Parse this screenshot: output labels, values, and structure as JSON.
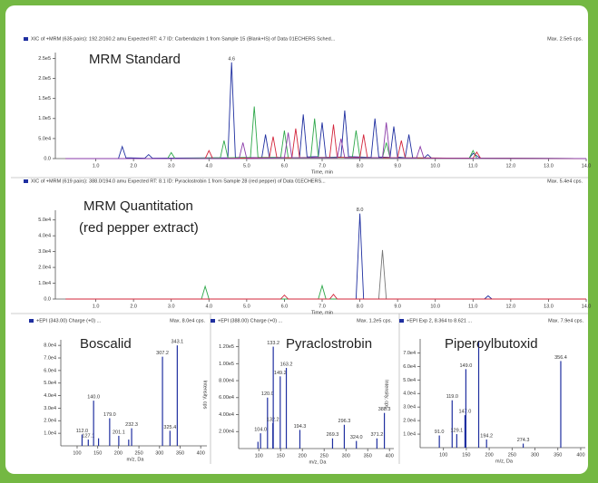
{
  "chart_data": [
    {
      "type": "line",
      "header": "XIC of +MRM (635 pairs): 192.2/160.2 amu Expected RT: 4.7 ID: Carbendazim 1 from Sample 15 (Blank+IS) of Data 01ECHERS Sched...",
      "max_label": "Max. 2.5e5 cps.",
      "title": "MRM Standard",
      "xlabel": "Time, min",
      "xlim": [
        0,
        14
      ],
      "ylim": [
        0,
        260000
      ],
      "xticks": [
        {
          "value": 1,
          "label": "1.0"
        },
        {
          "value": 2,
          "label": "2.0"
        },
        {
          "value": 3,
          "label": "3.0"
        },
        {
          "value": 4,
          "label": "4.0"
        },
        {
          "value": 5,
          "label": "5.0"
        },
        {
          "value": 6,
          "label": "6.0"
        },
        {
          "value": 7,
          "label": "7.0"
        },
        {
          "value": 8,
          "label": "8.0"
        },
        {
          "value": 9,
          "label": "9.0"
        },
        {
          "value": 10,
          "label": "10.0"
        },
        {
          "value": 11,
          "label": "11.0"
        },
        {
          "value": 12,
          "label": "12.0"
        },
        {
          "value": 13,
          "label": "13.0"
        },
        {
          "value": 14,
          "label": "14.0"
        }
      ],
      "yticks": [
        {
          "value": 0,
          "label": "0.0"
        },
        {
          "value": 50000,
          "label": "5.0e4"
        },
        {
          "value": 100000,
          "label": "1.0e5"
        },
        {
          "value": 150000,
          "label": "1.5e5"
        },
        {
          "value": 200000,
          "label": "2.0e5"
        },
        {
          "value": 250000,
          "label": "2.5e5"
        }
      ],
      "annotations": [
        {
          "x": 4.6,
          "y": 240000,
          "label": "4.6"
        }
      ],
      "series": [
        {
          "color": "#1f2fa0",
          "x": [
            0.2,
            1.6,
            1.7,
            1.8,
            2.3,
            2.4,
            2.5,
            4.5,
            4.6,
            4.7,
            5.4,
            5.5,
            5.6,
            6.4,
            6.5,
            6.6,
            6.9,
            7.0,
            7.1,
            7.5,
            7.6,
            7.7,
            8.3,
            8.4,
            8.5,
            8.8,
            8.9,
            9.0,
            9.2,
            9.3,
            9.4,
            9.7,
            9.8,
            9.9,
            10.9,
            11.0,
            11.2,
            14.0
          ],
          "values": [
            0,
            0,
            30000,
            2000,
            1000,
            10000,
            1000,
            2000,
            240000,
            3000,
            2000,
            60000,
            3000,
            2000,
            110000,
            4000,
            5000,
            90000,
            3000,
            4000,
            120000,
            5000,
            3000,
            100000,
            4000,
            3000,
            80000,
            4000,
            2000,
            60000,
            2000,
            1000,
            10000,
            1000,
            1000,
            13000,
            1000,
            0
          ]
        },
        {
          "color": "#2ea84a",
          "x": [
            0.2,
            2.9,
            3.0,
            3.1,
            4.3,
            4.4,
            4.5,
            5.1,
            5.2,
            5.3,
            5.9,
            6.0,
            6.1,
            6.7,
            6.8,
            6.9,
            7.8,
            7.9,
            8.0,
            8.6,
            8.7,
            8.8,
            10.9,
            11.0,
            11.1,
            14.0
          ],
          "values": [
            0,
            0,
            15000,
            0,
            2000,
            45000,
            2000,
            3000,
            130000,
            3000,
            3000,
            70000,
            2000,
            3000,
            100000,
            3000,
            3000,
            70000,
            3000,
            2000,
            40000,
            2000,
            1000,
            20000,
            1000,
            0
          ]
        },
        {
          "color": "#d3243a",
          "x": [
            0.2,
            3.9,
            4.0,
            4.1,
            5.6,
            5.7,
            5.8,
            6.2,
            6.3,
            6.4,
            7.2,
            7.3,
            7.4,
            8.0,
            8.1,
            8.2,
            9.0,
            9.1,
            9.2,
            11.0,
            11.1,
            11.2,
            14.0
          ],
          "values": [
            0,
            0,
            20000,
            0,
            2000,
            55000,
            2000,
            2000,
            75000,
            2000,
            3000,
            85000,
            3000,
            3000,
            60000,
            2000,
            2000,
            45000,
            2000,
            1000,
            16000,
            1000,
            0
          ]
        },
        {
          "color": "#8a3aa8",
          "x": [
            0.2,
            4.8,
            4.9,
            5.0,
            6.0,
            6.1,
            6.2,
            7.4,
            7.5,
            7.6,
            8.6,
            8.7,
            8.8,
            9.5,
            9.6,
            9.7,
            14.0
          ],
          "values": [
            0,
            0,
            40000,
            0,
            2000,
            65000,
            2000,
            2000,
            50000,
            2000,
            2000,
            90000,
            2000,
            1000,
            30000,
            1000,
            0
          ]
        }
      ]
    },
    {
      "type": "line",
      "header": "XIC of +MRM (619 pairs): 388.0/194.0 amu Expected RT: 8.1 ID: Pyraclostrobin 1 from Sample 28 (red pepper) of Data 01ECHERS...",
      "max_label": "Max. 5.4e4 cps.",
      "title": "MRM Quantitation",
      "subtitle": "(red pepper extract)",
      "xlabel": "Time, min",
      "xlim": [
        0,
        14
      ],
      "ylim": [
        0,
        55000
      ],
      "xticks": [
        {
          "value": 1,
          "label": "1.0"
        },
        {
          "value": 2,
          "label": "2.0"
        },
        {
          "value": 3,
          "label": "3.0"
        },
        {
          "value": 4,
          "label": "4.0"
        },
        {
          "value": 5,
          "label": "5.0"
        },
        {
          "value": 6,
          "label": "6.0"
        },
        {
          "value": 7,
          "label": "7.0"
        },
        {
          "value": 8,
          "label": "8.0"
        },
        {
          "value": 9,
          "label": "9.0"
        },
        {
          "value": 10,
          "label": "10.0"
        },
        {
          "value": 11,
          "label": "11.0"
        },
        {
          "value": 12,
          "label": "12.0"
        },
        {
          "value": 13,
          "label": "13.0"
        },
        {
          "value": 14,
          "label": "14.0"
        }
      ],
      "yticks": [
        {
          "value": 0,
          "label": "0.0"
        },
        {
          "value": 10000,
          "label": "1.0e4"
        },
        {
          "value": 20000,
          "label": "2.0e4"
        },
        {
          "value": 30000,
          "label": "3.0e4"
        },
        {
          "value": 40000,
          "label": "4.0e4"
        },
        {
          "value": 50000,
          "label": "5.0e4"
        }
      ],
      "annotations": [
        {
          "x": 8.0,
          "y": 54000,
          "label": "8.0"
        }
      ],
      "series": [
        {
          "color": "#1f2fa0",
          "x": [
            0.2,
            7.9,
            8.0,
            8.1,
            11.3,
            11.4,
            11.5,
            14.0
          ],
          "values": [
            0,
            0,
            54000,
            0,
            0,
            2000,
            0,
            0
          ]
        },
        {
          "color": "#777777",
          "x": [
            0.2,
            8.5,
            8.6,
            8.7,
            14.0
          ],
          "values": [
            0,
            0,
            31000,
            0,
            0
          ]
        },
        {
          "color": "#2ea84a",
          "x": [
            0.2,
            3.8,
            3.9,
            4.0,
            6.9,
            7.0,
            7.1,
            14.0
          ],
          "values": [
            0,
            0,
            8000,
            0,
            0,
            8500,
            0,
            0
          ]
        },
        {
          "color": "#d3243a",
          "x": [
            0.2,
            5.9,
            6.0,
            6.1,
            7.2,
            7.3,
            7.4,
            14.0
          ],
          "values": [
            0,
            0,
            2500,
            0,
            0,
            3000,
            0,
            0
          ]
        }
      ]
    },
    {
      "type": "bar",
      "header": "+EPI (343.00) Charge (+0) ...",
      "max_label": "Max. 8.0e4 cps.",
      "title": "Boscalid",
      "xlabel": "m/z, Da",
      "color": "#1f2fa0",
      "xlim": [
        67,
        415
      ],
      "ylim": [
        0,
        83000
      ],
      "xticks": [
        100,
        150,
        200,
        250,
        300,
        350,
        400
      ],
      "yticks": [
        {
          "value": 10000,
          "label": "1.0e4"
        },
        {
          "value": 20000,
          "label": "2.0e4"
        },
        {
          "value": 30000,
          "label": "3.0e4"
        },
        {
          "value": 40000,
          "label": "4.0e4"
        },
        {
          "value": 50000,
          "label": "5.0e4"
        },
        {
          "value": 60000,
          "label": "6.0e4"
        },
        {
          "value": 70000,
          "label": "7.0e4"
        },
        {
          "value": 80000,
          "label": "8.0e4"
        }
      ],
      "x": [
        112,
        127.1,
        140,
        152,
        179,
        201.1,
        225.2,
        232.3,
        307.2,
        325.4,
        343.1
      ],
      "x_labels": [
        "112.0",
        "127.1",
        "140.0",
        null,
        "179.0",
        "201.1",
        null,
        "232.3",
        "307.2",
        "325.4",
        "343.1"
      ],
      "values": [
        9000,
        5000,
        36000,
        6000,
        22000,
        8000,
        5000,
        14000,
        71000,
        12000,
        80000
      ]
    },
    {
      "type": "bar",
      "header": "+EPI (388.00) Charge (+0) ...",
      "max_label": "Max. 1.2e5 cps.",
      "title": "Pyraclostrobin",
      "xlabel": "m/z, Da",
      "ylabel": "Intensity, cps",
      "color": "#1f2fa0",
      "xlim": [
        60,
        410
      ],
      "ylim": [
        0,
        127000
      ],
      "xticks": [
        100,
        150,
        200,
        250,
        300,
        350,
        400
      ],
      "yticks": [
        {
          "value": 20000,
          "label": "2.00e4"
        },
        {
          "value": 40000,
          "label": "4.00e4"
        },
        {
          "value": 60000,
          "label": "6.00e4"
        },
        {
          "value": 80000,
          "label": "8.00e4"
        },
        {
          "value": 100000,
          "label": "1.00e5"
        },
        {
          "value": 120000,
          "label": "1.20e5"
        }
      ],
      "x": [
        98.1,
        104,
        120,
        132.2,
        133.2,
        149.2,
        163.2,
        194.3,
        269.3,
        296.3,
        324,
        371.2,
        388.3
      ],
      "x_labels": [
        null,
        "104.0",
        "120.0",
        "132.2",
        "133.2",
        "149.2",
        "163.2",
        "194.3",
        "269.3",
        "296.3",
        "324.0",
        "371.2",
        "388.3"
      ],
      "values": [
        8000,
        18000,
        60000,
        30000,
        120000,
        85000,
        95000,
        22000,
        12000,
        28000,
        9000,
        12000,
        42000
      ]
    },
    {
      "type": "bar",
      "header": "+EPI Exp 2, 8.364 to 8.621 ...",
      "max_label": "Max. 7.9e4 cps.",
      "title": "Piperoylbutoxid",
      "xlabel": "m/z, Da",
      "ylabel": "Intensity, cps",
      "color": "#1f2fa0",
      "xlim": [
        55,
        410
      ],
      "ylim": [
        0,
        79000
      ],
      "xticks": [
        100,
        150,
        200,
        250,
        300,
        350,
        400
      ],
      "yticks": [
        {
          "value": 10000,
          "label": "1.0e4"
        },
        {
          "value": 20000,
          "label": "2.0e4"
        },
        {
          "value": 30000,
          "label": "3.0e4"
        },
        {
          "value": 40000,
          "label": "4.0e4"
        },
        {
          "value": 50000,
          "label": "5.0e4"
        },
        {
          "value": 60000,
          "label": "6.0e4"
        },
        {
          "value": 70000,
          "label": "7.0e4"
        }
      ],
      "x": [
        91,
        119,
        129.1,
        147,
        149,
        177,
        194.2,
        274.3,
        356.4
      ],
      "x_labels": [
        "91.0",
        "119.0",
        "129.1",
        "147.0",
        "149.0",
        null,
        "194.2",
        "274.3",
        "356.4"
      ],
      "values": [
        9000,
        35000,
        10000,
        24000,
        58000,
        79000,
        6000,
        3000,
        64000
      ]
    }
  ]
}
